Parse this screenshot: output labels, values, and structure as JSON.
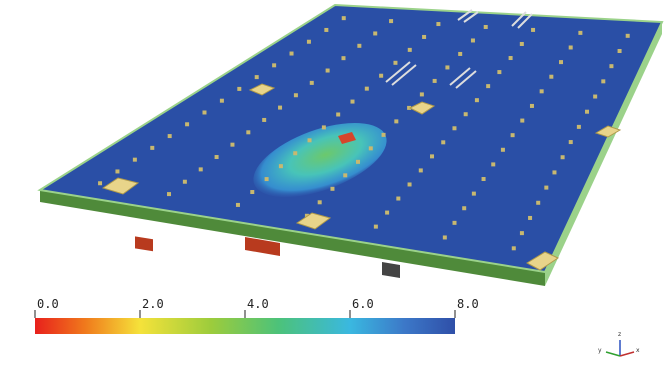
{
  "colorbar": {
    "ticks": [
      {
        "value": 0,
        "label": "0.0"
      },
      {
        "value": 2,
        "label": "2.0"
      },
      {
        "value": 4,
        "label": "4.0"
      },
      {
        "value": 6,
        "label": "6.0"
      },
      {
        "value": 8,
        "label": "8.0"
      }
    ]
  },
  "axes_triad": {
    "labels": [
      "x",
      "y",
      "z"
    ]
  }
}
